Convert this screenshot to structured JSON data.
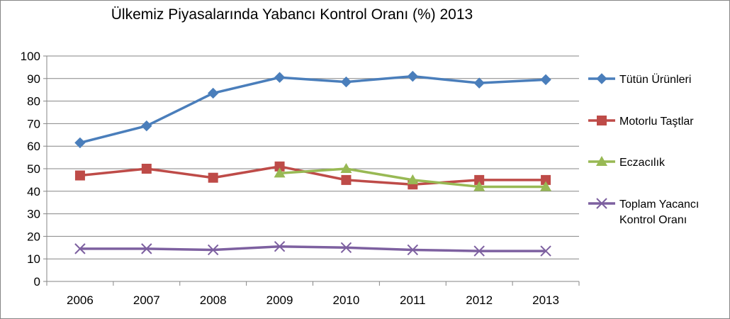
{
  "chart_data": {
    "type": "line",
    "title": "Ülkemiz Piyasalarında Yabancı Kontrol Oranı (%) 2013",
    "xlabel": "",
    "ylabel": "",
    "categories": [
      "2006",
      "2007",
      "2008",
      "2009",
      "2010",
      "2011",
      "2012",
      "2013"
    ],
    "ylim": [
      0,
      100
    ],
    "yticks": [
      0,
      10,
      20,
      30,
      40,
      50,
      60,
      70,
      80,
      90,
      100
    ],
    "grid": true,
    "legend": "right",
    "series": [
      {
        "name": "Tütün Ürünleri",
        "color": "#4a7ebb",
        "marker": "diamond",
        "values": [
          61.5,
          69,
          83.5,
          90.5,
          88.5,
          91,
          88,
          89.5
        ]
      },
      {
        "name": "Motorlu Taştlar",
        "color": "#be4b48",
        "marker": "square",
        "values": [
          47,
          50,
          46,
          51,
          45,
          43,
          45,
          45
        ]
      },
      {
        "name": "Eczacılık",
        "color": "#98b954",
        "marker": "triangle",
        "values": [
          null,
          null,
          null,
          48,
          50,
          45,
          42,
          42
        ]
      },
      {
        "name": "Toplam Yacancı Kontrol Oranı",
        "legend_lines": [
          "Toplam Yacancı",
          "Kontrol Oranı"
        ],
        "color": "#7d60a0",
        "marker": "x",
        "values": [
          14.5,
          14.5,
          14,
          15.5,
          15,
          14,
          13.5,
          13.5
        ]
      }
    ]
  }
}
